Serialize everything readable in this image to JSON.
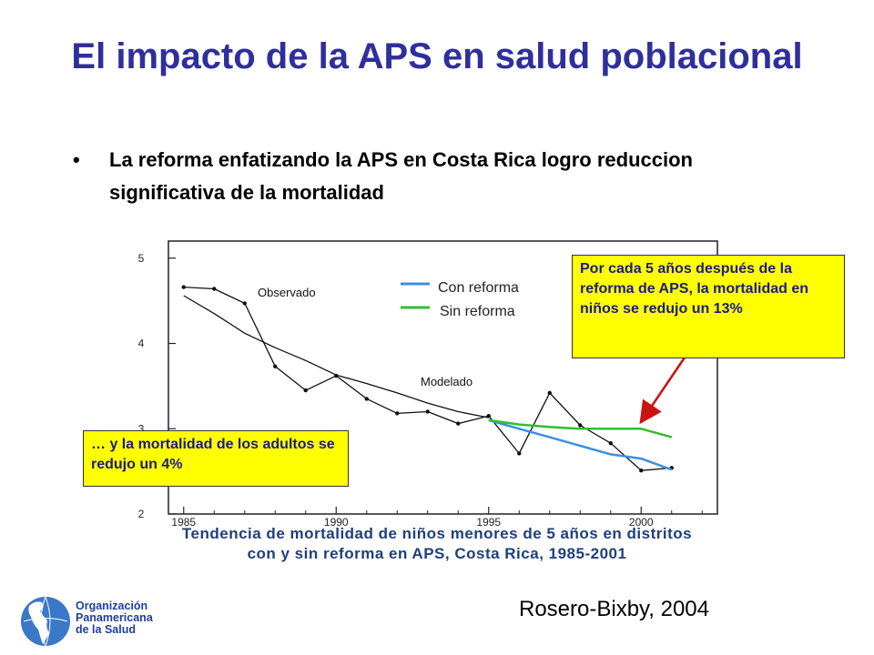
{
  "slide": {
    "title": "El impacto de la APS en salud poblacional",
    "bullet": "La reforma enfatizando la APS en Costa Rica logro reduccion significativa de la mortalidad",
    "caption_line1": "Tendencia de mortalidad de niños menores de 5 años en distritos",
    "caption_line2": "con y sin reforma en APS, Costa Rica, 1985-2001",
    "citation": "Rosero-Bixby, 2004",
    "callout_right": "Por cada 5 años después de la reforma de APS, la mortalidad en niños se redujo un 13%",
    "callout_left": "… y la mortalidad de los adultos se redujo un 4%",
    "org_line1": "Organización",
    "org_line2": "Panamericana",
    "org_line3": "de la Salud",
    "colors": {
      "title": "#2f2f9c",
      "callout_bg": "#ffff00",
      "arrow": "#cc1111",
      "caption": "#1f3f7a"
    }
  },
  "chart_data": {
    "type": "line",
    "xlim": [
      1984.5,
      2002.5
    ],
    "ylim": [
      2,
      5.2
    ],
    "x_ticks": [
      "1985",
      "1990",
      "1995",
      "2000"
    ],
    "y_ticks": [
      "2",
      "3",
      "4",
      "5"
    ],
    "labels": {
      "observed": "Observado",
      "modeled": "Modelado"
    },
    "legend": [
      "Con reforma",
      "Sin reforma"
    ],
    "legend_position": "top-right",
    "series": [
      {
        "key": "observado",
        "color": "#111111",
        "marker": true,
        "x": [
          1985,
          1986,
          1987,
          1988,
          1989,
          1990,
          1991,
          1992,
          1993,
          1994,
          1995,
          1996,
          1997,
          1998,
          1999,
          2000,
          2001
        ],
        "y": [
          4.66,
          4.64,
          4.47,
          3.73,
          3.45,
          3.62,
          3.35,
          3.18,
          3.2,
          3.06,
          3.15,
          2.71,
          3.42,
          3.04,
          2.83,
          2.51,
          2.54
        ]
      },
      {
        "key": "modelado",
        "color": "#111111",
        "marker": false,
        "x": [
          1985,
          1986,
          1987,
          1988,
          1989,
          1990,
          1991,
          1992,
          1993,
          1994,
          1995
        ],
        "y": [
          4.56,
          4.35,
          4.12,
          3.95,
          3.8,
          3.63,
          3.53,
          3.42,
          3.3,
          3.2,
          3.13
        ]
      },
      {
        "name": "Con reforma",
        "color": "#3a8fe6",
        "x": [
          1995,
          1996,
          1997,
          1998,
          1999,
          2000,
          2001
        ],
        "y": [
          3.1,
          3.0,
          2.9,
          2.8,
          2.7,
          2.65,
          2.52
        ]
      },
      {
        "name": "Sin reforma",
        "color": "#2ec02e",
        "x": [
          1995,
          1996,
          1997,
          1998,
          1999,
          2000,
          2001
        ],
        "y": [
          3.1,
          3.05,
          3.02,
          3.0,
          3.0,
          3.0,
          2.9
        ]
      }
    ]
  }
}
